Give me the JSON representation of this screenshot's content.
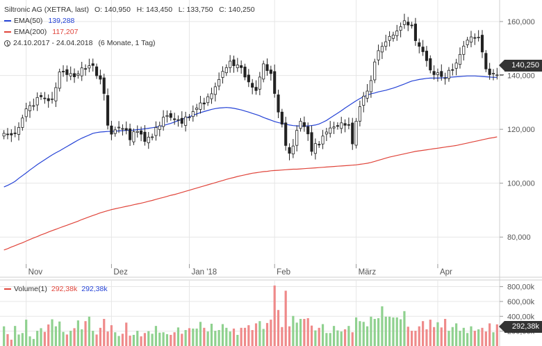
{
  "legend": {
    "title": "Siltronic AG (XETRA, last)",
    "ohlc": "O: 140,950   H: 143,450   L: 133,750   C: 140,250",
    "ema50_label": "EMA(50)",
    "ema50_value": "139,288",
    "ema200_label": "EMA(200)",
    "ema200_value": "117,207",
    "period": "24.10.2017 - 24.04.2018",
    "range": "(6 Monate, 1 Tag)"
  },
  "price_tag": "140,250",
  "volume_legend": {
    "label": "Volume(1)",
    "value_red": "292,38k",
    "value_blue": "292,38k"
  },
  "volume_tag": "292,38k",
  "colors": {
    "up": "#4caf50",
    "down": "#222222",
    "ema50": "#2442d6",
    "ema200": "#e0443a",
    "vol_up": "#8fd18f",
    "vol_down": "#ef8a8a",
    "grid": "#e6e6e6",
    "axis": "#555555"
  },
  "chart_data": [
    {
      "type": "candlestick",
      "ylim": [
        70,
        168
      ],
      "y_ticks": [
        80,
        100,
        120,
        140,
        160
      ],
      "y_tick_labels": [
        "80,000",
        "100,000",
        "120,000",
        "140,000",
        "160,000"
      ],
      "x_tick_labels": [
        "Nov",
        "Dez",
        "Jan '18",
        "Feb",
        "März",
        "Apr"
      ],
      "x_tick_index": [
        6,
        29,
        50,
        73,
        95,
        117
      ],
      "n_days": 134,
      "closes": [
        118.5,
        118.2,
        117.9,
        118.6,
        120.7,
        124.2,
        127.6,
        128.8,
        128.8,
        131.8,
        132.1,
        131.4,
        130.6,
        131.3,
        135.5,
        141.3,
        141.4,
        140.3,
        140.7,
        139.5,
        140.6,
        142.8,
        142.5,
        143.6,
        143.7,
        139.9,
        138.6,
        133.3,
        121.5,
        118.2,
        119.8,
        120.8,
        120.3,
        119.7,
        116.1,
        119.1,
        119.2,
        118.2,
        115.5,
        117.1,
        117.2,
        120.7,
        121.3,
        124.5,
        125.1,
        124.4,
        123.6,
        123.6,
        122.2,
        124.6,
        124.5,
        126.6,
        127.9,
        129.8,
        129.4,
        132.1,
        133.2,
        135.8,
        138.5,
        141.5,
        142.9,
        145.3,
        143.6,
        143.9,
        142.9,
        139.4,
        137.6,
        135.6,
        134.4,
        139.4,
        144.3,
        141.8,
        140.7,
        133.3,
        126.4,
        121.9,
        114.0,
        111.1,
        113.8,
        119.6,
        123.0,
        121.0,
        118.3,
        111.8,
        114.7,
        114.3,
        117.5,
        119.0,
        120.5,
        120.9,
        121.1,
        122.4,
        121.5,
        121.6,
        114.6,
        123.0,
        128.4,
        132.3,
        134.2,
        138.1,
        145.0,
        149.2,
        150.8,
        152.5,
        154.5,
        155.0,
        156.5,
        158.1,
        160.3,
        158.7,
        158.6,
        152.9,
        150.8,
        148.8,
        145.5,
        142.0,
        140.3,
        141.0,
        139.6,
        139.1,
        141.9,
        141.9,
        144.6,
        147.8,
        150.9,
        153.1,
        154.3,
        153.9,
        154.2,
        148.7,
        142.4,
        140.3,
        140.8,
        140.2
      ],
      "ema50": [
        98.6,
        99.2,
        99.9,
        100.7,
        101.8,
        102.8,
        103.8,
        104.9,
        105.9,
        106.9,
        107.8,
        108.7,
        109.6,
        110.5,
        111.3,
        112.0,
        112.8,
        113.6,
        114.4,
        115.2,
        116.0,
        116.7,
        117.3,
        117.9,
        118.5,
        118.8,
        119.0,
        119.1,
        119.2,
        119.2,
        119.3,
        119.4,
        119.5,
        119.6,
        119.6,
        119.7,
        119.9,
        120.0,
        120.2,
        120.4,
        120.6,
        120.8,
        121.1,
        121.4,
        121.8,
        122.2,
        122.7,
        123.2,
        123.7,
        124.2,
        124.7,
        125.2,
        125.7,
        126.2,
        126.6,
        127.0,
        127.4,
        127.7,
        127.9,
        128.0,
        128.1,
        128.0,
        127.8,
        127.5,
        127.2,
        126.8,
        126.4,
        125.9,
        125.5,
        125.0,
        124.4,
        123.9,
        123.4,
        122.9,
        122.5,
        122.2,
        121.9,
        121.6,
        121.4,
        121.3,
        121.2,
        121.2,
        121.3,
        121.4,
        121.6,
        122.0,
        122.6,
        123.3,
        124.2,
        125.1,
        126.0,
        126.9,
        127.9,
        128.8,
        129.7,
        130.6,
        131.4,
        132.1,
        132.7,
        133.2,
        133.5,
        133.9,
        134.2,
        134.5,
        134.9,
        135.3,
        135.8,
        136.3,
        136.8,
        137.4,
        137.9,
        138.2,
        138.5,
        138.7,
        138.9,
        139.0,
        139.0,
        139.0,
        139.1,
        139.2,
        139.3,
        139.4,
        139.5,
        139.6,
        139.7,
        139.8,
        139.8,
        139.8,
        139.7,
        139.6,
        139.5,
        139.4,
        139.3,
        139.3
      ],
      "ema200": [
        75.2,
        75.7,
        76.3,
        76.8,
        77.4,
        77.9,
        78.5,
        79.1,
        79.7,
        80.2,
        80.8,
        81.3,
        81.9,
        82.4,
        82.9,
        83.4,
        83.9,
        84.4,
        84.9,
        85.4,
        85.9,
        86.5,
        87.0,
        87.5,
        88.0,
        88.5,
        89.0,
        89.4,
        89.8,
        90.2,
        90.5,
        90.8,
        91.1,
        91.4,
        91.7,
        92.0,
        92.3,
        92.6,
        92.9,
        93.3,
        93.6,
        94.0,
        94.4,
        94.7,
        95.1,
        95.5,
        95.8,
        96.2,
        96.6,
        97.0,
        97.4,
        97.8,
        98.2,
        98.6,
        99.0,
        99.4,
        99.8,
        100.2,
        100.6,
        101.0,
        101.4,
        101.8,
        102.1,
        102.5,
        102.8,
        103.1,
        103.4,
        103.7,
        103.9,
        104.1,
        104.3,
        104.4,
        104.6,
        104.7,
        104.8,
        104.9,
        105.0,
        105.1,
        105.2,
        105.2,
        105.3,
        105.4,
        105.5,
        105.6,
        105.7,
        105.8,
        105.9,
        106.0,
        106.1,
        106.2,
        106.3,
        106.4,
        106.5,
        106.6,
        106.7,
        106.8,
        107.0,
        107.2,
        107.4,
        107.7,
        108.1,
        108.5,
        108.9,
        109.3,
        109.7,
        110.0,
        110.3,
        110.6,
        110.9,
        111.2,
        111.5,
        111.8,
        112.0,
        112.2,
        112.4,
        112.6,
        112.8,
        113.0,
        113.2,
        113.4,
        113.6,
        113.8,
        114.0,
        114.3,
        114.6,
        114.9,
        115.2,
        115.5,
        115.8,
        116.1,
        116.4,
        116.7,
        116.9,
        117.2
      ]
    },
    {
      "type": "bar",
      "name": "Volume(1)",
      "unit": "k",
      "ylim": [
        0,
        880
      ],
      "y_ticks": [
        200,
        400,
        600,
        800
      ],
      "y_tick_labels": [
        "200,00k",
        "400,00k",
        "600,00k",
        "800,00k"
      ],
      "volumes": [
        265,
        160,
        85,
        270,
        155,
        175,
        355,
        130,
        95,
        205,
        240,
        190,
        290,
        360,
        265,
        330,
        190,
        155,
        205,
        240,
        345,
        225,
        335,
        395,
        205,
        155,
        245,
        365,
        195,
        280,
        185,
        135,
        165,
        315,
        140,
        150,
        205,
        130,
        175,
        200,
        165,
        270,
        180,
        185,
        160,
        150,
        185,
        250,
        165,
        215,
        240,
        235,
        235,
        325,
        245,
        195,
        300,
        205,
        215,
        295,
        245,
        195,
        235,
        150,
        245,
        245,
        280,
        215,
        305,
        335,
        230,
        310,
        355,
        815,
        485,
        255,
        745,
        265,
        405,
        315,
        365,
        365,
        375,
        275,
        210,
        245,
        295,
        175,
        175,
        270,
        210,
        195,
        225,
        270,
        185,
        385,
        335,
        325,
        265,
        395,
        365,
        375,
        535,
        395,
        395,
        385,
        385,
        360,
        470,
        260,
        205,
        205,
        265,
        335,
        225,
        355,
        255,
        320,
        250,
        365,
        205,
        255,
        305,
        205,
        245,
        175,
        265,
        205,
        225,
        245,
        195,
        305,
        185,
        292
      ]
    }
  ]
}
